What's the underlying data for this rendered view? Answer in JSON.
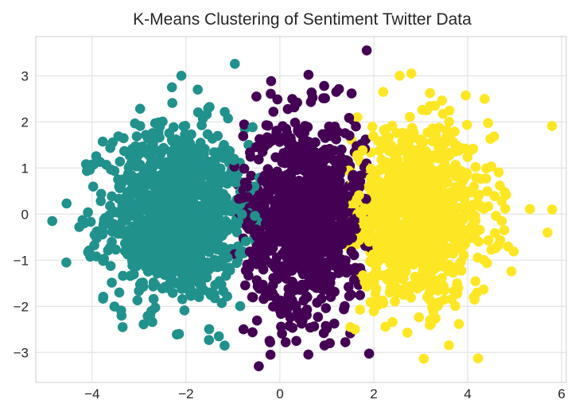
{
  "chart_data": {
    "type": "scatter",
    "title": "K-Means Clustering of Sentiment Twitter Data",
    "xlabel": "",
    "ylabel": "",
    "xlim": [
      -5.2,
      6.1
    ],
    "ylim": [
      -3.65,
      3.85
    ],
    "x_ticks": [
      -4,
      -2,
      0,
      2,
      4,
      6
    ],
    "x_tick_labels": [
      "−4",
      "−2",
      "0",
      "2",
      "4",
      "6"
    ],
    "y_ticks": [
      -3,
      -2,
      -1,
      0,
      1,
      2,
      3
    ],
    "y_tick_labels": [
      "−3",
      "−2",
      "−1",
      "0",
      "1",
      "2",
      "3"
    ],
    "grid": true,
    "legend": "none",
    "marker": "circle",
    "clusters": [
      {
        "color": "#21918c",
        "count": 1100,
        "center": [
          -2.2,
          0.0
        ],
        "std": [
          0.75,
          0.95
        ],
        "x_range": [
          -4.9,
          -0.35
        ]
      },
      {
        "color": "#440154",
        "count": 1000,
        "center": [
          0.55,
          0.0
        ],
        "std": [
          0.65,
          1.05
        ],
        "x_range": [
          -1.0,
          2.0
        ]
      },
      {
        "color": "#fde725",
        "count": 1000,
        "center": [
          2.9,
          -0.05
        ],
        "std": [
          0.8,
          0.9
        ],
        "x_range": [
          1.45,
          5.85
        ]
      }
    ],
    "notable_points": [
      {
        "cluster": 0,
        "x": -4.85,
        "y": -0.15
      },
      {
        "cluster": 0,
        "x": -4.55,
        "y": -1.05
      },
      {
        "cluster": 0,
        "x": -2.1,
        "y": 3.0
      },
      {
        "cluster": 0,
        "x": -2.3,
        "y": 2.75
      },
      {
        "cluster": 0,
        "x": -1.75,
        "y": 2.7
      },
      {
        "cluster": 0,
        "x": -3.35,
        "y": -2.45
      },
      {
        "cluster": 0,
        "x": -2.15,
        "y": -2.6
      },
      {
        "cluster": 0,
        "x": -1.3,
        "y": -2.65
      },
      {
        "cluster": 1,
        "x": 1.85,
        "y": 3.55
      },
      {
        "cluster": 1,
        "x": -0.45,
        "y": -3.3
      },
      {
        "cluster": 1,
        "x": 0.95,
        "y": -2.85
      },
      {
        "cluster": 1,
        "x": -0.2,
        "y": -3.05
      },
      {
        "cluster": 1,
        "x": 0.35,
        "y": -2.75
      },
      {
        "cluster": 1,
        "x": -0.5,
        "y": 2.55
      },
      {
        "cluster": 1,
        "x": 1.2,
        "y": 2.65
      },
      {
        "cluster": 2,
        "x": 2.8,
        "y": 3.05
      },
      {
        "cluster": 2,
        "x": 2.55,
        "y": 3.0
      },
      {
        "cluster": 2,
        "x": 3.3,
        "y": 2.35
      },
      {
        "cluster": 2,
        "x": 5.8,
        "y": 0.1
      },
      {
        "cluster": 2,
        "x": 5.7,
        "y": -0.4
      },
      {
        "cluster": 2,
        "x": 4.2,
        "y": -1.7
      },
      {
        "cluster": 2,
        "x": 1.5,
        "y": -2.45
      },
      {
        "cluster": 2,
        "x": 1.6,
        "y": -2.5
      },
      {
        "cluster": 2,
        "x": 2.2,
        "y": 2.65
      }
    ]
  }
}
